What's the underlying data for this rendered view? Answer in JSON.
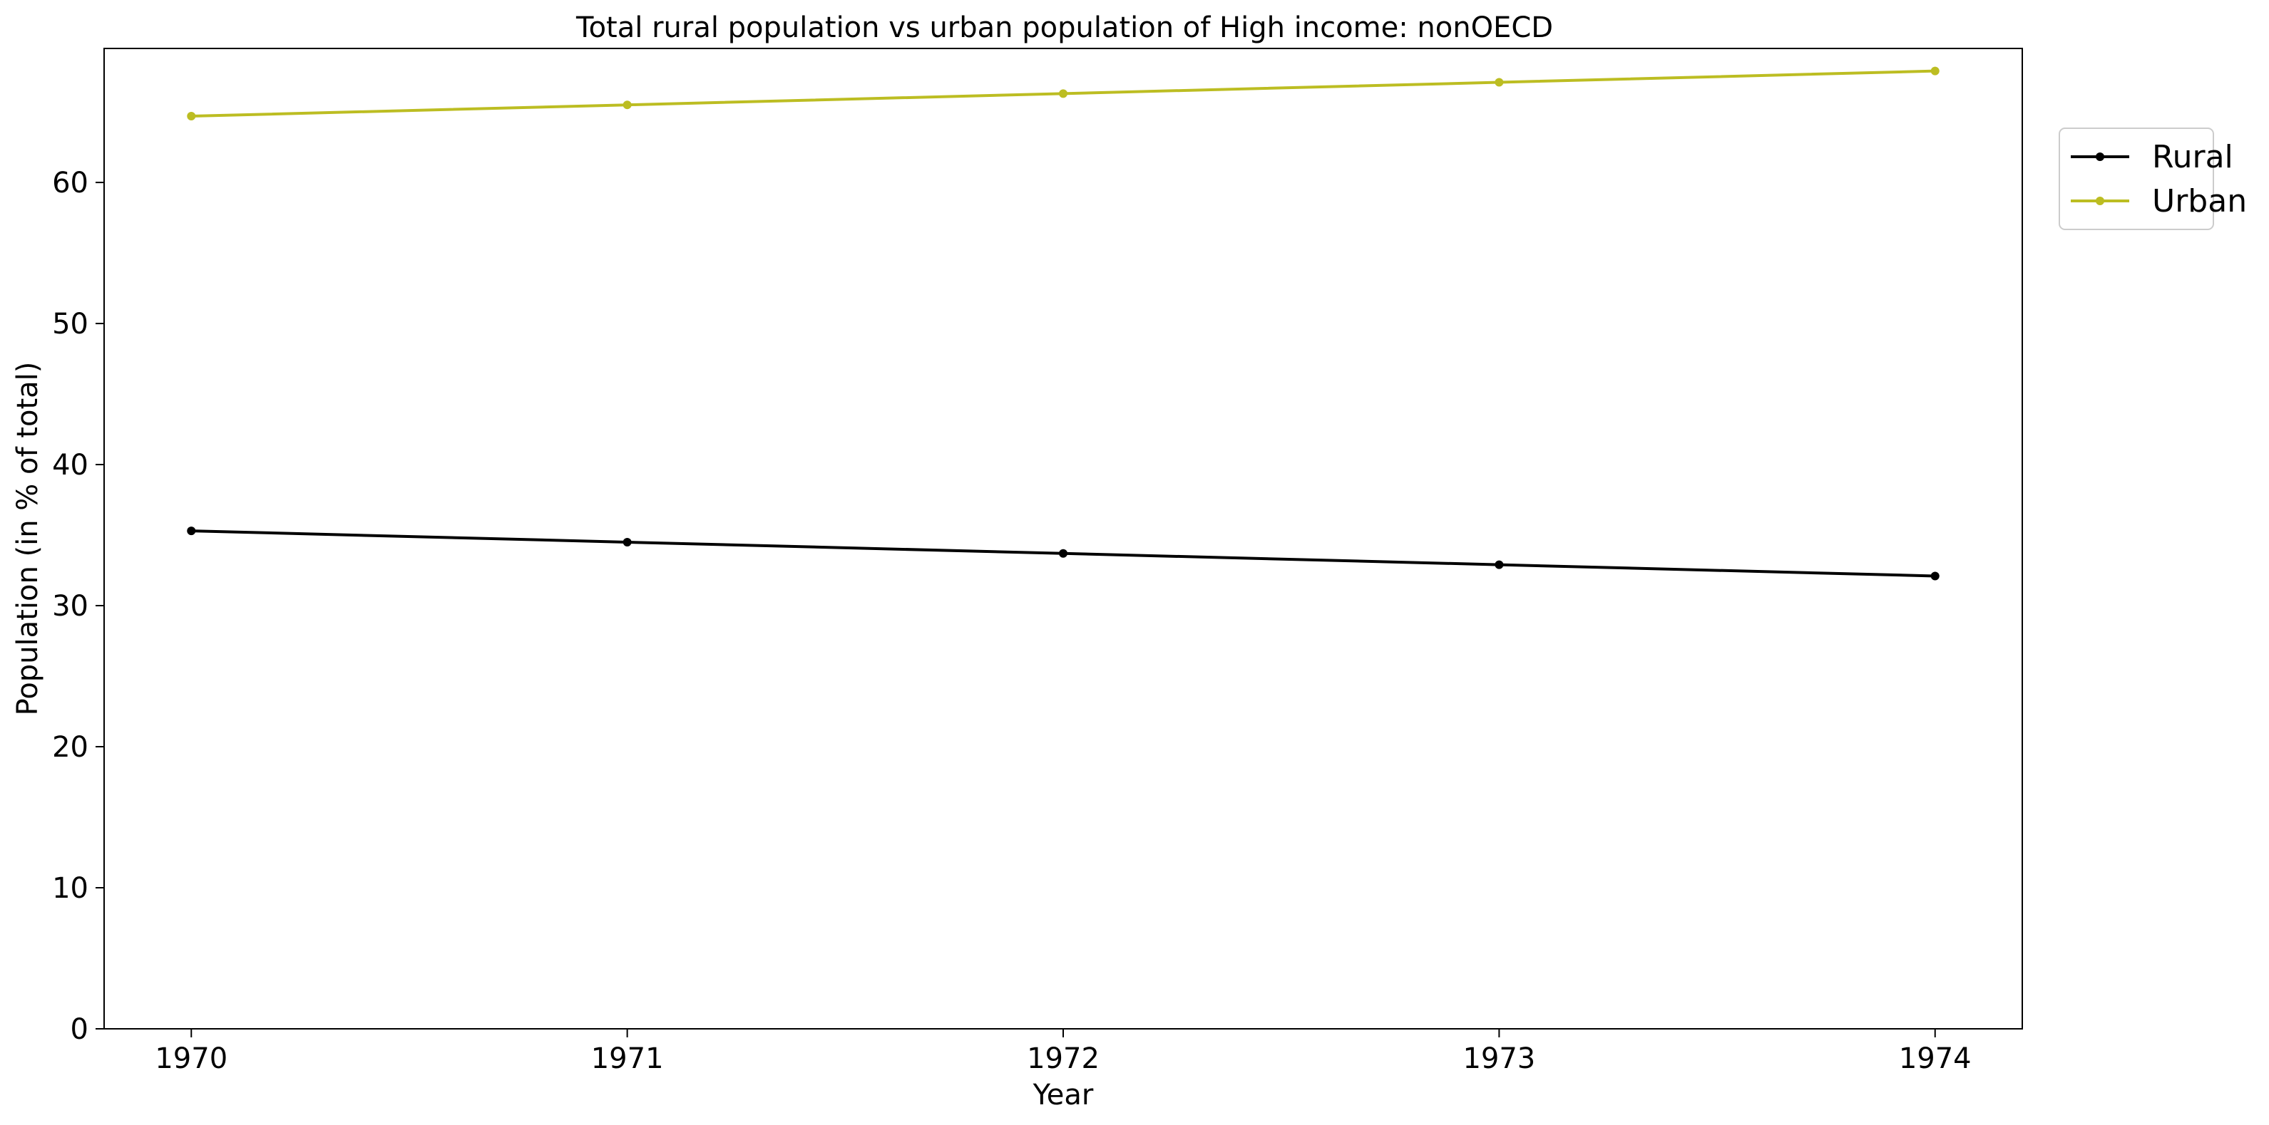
{
  "chart_data": {
    "type": "line",
    "title": "Total rural population vs urban population of High income: nonOECD",
    "xlabel": "Year",
    "ylabel": "Population (in % of total)",
    "x": [
      1970,
      1971,
      1972,
      1973,
      1974
    ],
    "x_tick_labels": [
      "1970",
      "1971",
      "1972",
      "1973",
      "1974"
    ],
    "y_tick_values": [
      0,
      10,
      20,
      30,
      40,
      50,
      60
    ],
    "y_tick_labels": [
      "0",
      "10",
      "20",
      "30",
      "40",
      "50",
      "60"
    ],
    "xlim": [
      1969.8,
      1974.2
    ],
    "ylim": [
      0,
      69.5
    ],
    "grid": false,
    "legend_position": "upper right, outside plot area",
    "series": [
      {
        "name": "Rural",
        "color": "#000000",
        "values": [
          35.3,
          34.5,
          33.7,
          32.9,
          32.1
        ]
      },
      {
        "name": "Urban",
        "color": "#bcbd22",
        "values": [
          64.7,
          65.5,
          66.3,
          67.1,
          67.9
        ]
      }
    ]
  }
}
